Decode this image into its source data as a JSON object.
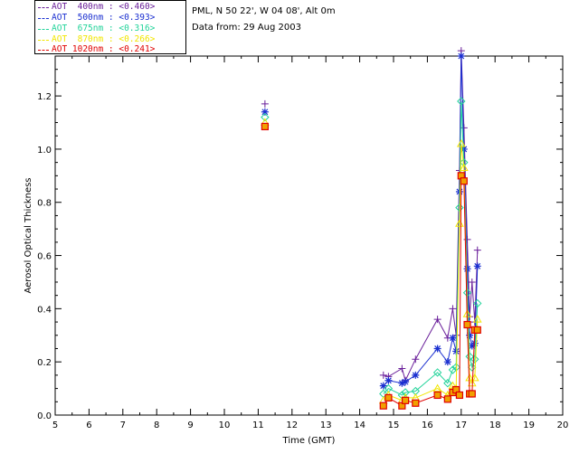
{
  "info": {
    "line1": "PML, N 50 22', W 04 08', Alt 0m",
    "line2": "Data from: 29 Aug 2003"
  },
  "legend": [
    {
      "label": "AOT  400nm : <0.460>",
      "color": "#6a1f9a"
    },
    {
      "label": "AOT  500nm : <0.393>",
      "color": "#1a2fd0"
    },
    {
      "label": "AOT  675nm : <0.316>",
      "color": "#22d39a"
    },
    {
      "label": "AOT  870nm : <0.266>",
      "color": "#f2e600"
    },
    {
      "label": "AOT 1020nm : <0.241>",
      "color": "#e00000"
    }
  ],
  "chart_data": {
    "type": "scatter",
    "xlabel": "Time (GMT)",
    "ylabel": "Aerosol Optical Thickness",
    "xlim": [
      5,
      20
    ],
    "ylim": [
      0.0,
      1.35
    ],
    "xticks": [
      "5",
      "6",
      "7",
      "8",
      "9",
      "10",
      "11",
      "12",
      "13",
      "14",
      "15",
      "16",
      "17",
      "18",
      "19",
      "20"
    ],
    "yticks": [
      "0.0",
      "0.2",
      "0.4",
      "0.6",
      "0.8",
      "1.0",
      "1.2"
    ],
    "series": [
      {
        "name": "AOT  400nm : <0.460>",
        "color": "#6a1f9a",
        "marker": "plus",
        "x": [
          11.2,
          14.7,
          14.85,
          15.25,
          15.35,
          15.65,
          16.3,
          16.6,
          16.75,
          16.85,
          16.95,
          17.0,
          17.08,
          17.18,
          17.25,
          17.32,
          17.4,
          17.48
        ],
        "y": [
          1.17,
          0.15,
          0.145,
          0.175,
          0.13,
          0.21,
          0.36,
          0.29,
          0.4,
          0.3,
          0.92,
          1.37,
          1.08,
          0.66,
          0.37,
          0.5,
          0.35,
          0.62
        ]
      },
      {
        "name": "AOT  500nm : <0.393>",
        "color": "#1a2fd0",
        "marker": "star",
        "x": [
          11.2,
          14.7,
          14.85,
          15.25,
          15.35,
          15.65,
          16.3,
          16.6,
          16.75,
          16.85,
          16.95,
          17.0,
          17.08,
          17.18,
          17.25,
          17.32,
          17.4,
          17.48
        ],
        "y": [
          1.14,
          0.11,
          0.13,
          0.12,
          0.125,
          0.15,
          0.25,
          0.2,
          0.29,
          0.24,
          0.84,
          1.35,
          1.0,
          0.55,
          0.3,
          0.26,
          0.27,
          0.56
        ]
      },
      {
        "name": "AOT  675nm : <0.316>",
        "color": "#22d39a",
        "marker": "diamond",
        "x": [
          11.2,
          14.7,
          14.85,
          15.25,
          15.35,
          15.65,
          16.3,
          16.6,
          16.75,
          16.85,
          16.95,
          17.0,
          17.08,
          17.18,
          17.25,
          17.32,
          17.4,
          17.48
        ],
        "y": [
          1.12,
          0.08,
          0.1,
          0.075,
          0.085,
          0.09,
          0.16,
          0.12,
          0.17,
          0.18,
          0.78,
          1.18,
          0.95,
          0.46,
          0.22,
          0.18,
          0.21,
          0.42
        ]
      },
      {
        "name": "AOT  870nm : <0.266>",
        "color": "#f2e600",
        "marker": "triangle",
        "x": [
          11.2,
          14.7,
          14.85,
          15.25,
          15.35,
          15.65,
          16.3,
          16.6,
          16.75,
          16.85,
          16.95,
          17.0,
          17.08,
          17.18,
          17.25,
          17.32,
          17.4,
          17.48
        ],
        "y": [
          1.1,
          0.055,
          0.075,
          0.055,
          0.065,
          0.065,
          0.1,
          0.075,
          0.11,
          0.1,
          0.72,
          1.02,
          0.93,
          0.38,
          0.14,
          0.12,
          0.14,
          0.36
        ]
      },
      {
        "name": "AOT 1020nm : <0.241>",
        "color": "#e00000",
        "marker": "square",
        "x": [
          11.2,
          14.7,
          14.85,
          15.25,
          15.35,
          15.65,
          16.3,
          16.6,
          16.75,
          16.85,
          16.95,
          17.0,
          17.08,
          17.18,
          17.25,
          17.32,
          17.4,
          17.48
        ],
        "y": [
          1.085,
          0.035,
          0.065,
          0.035,
          0.055,
          0.045,
          0.075,
          0.06,
          0.085,
          0.095,
          0.075,
          0.9,
          0.88,
          0.34,
          0.08,
          0.08,
          0.32,
          0.32
        ]
      }
    ]
  }
}
